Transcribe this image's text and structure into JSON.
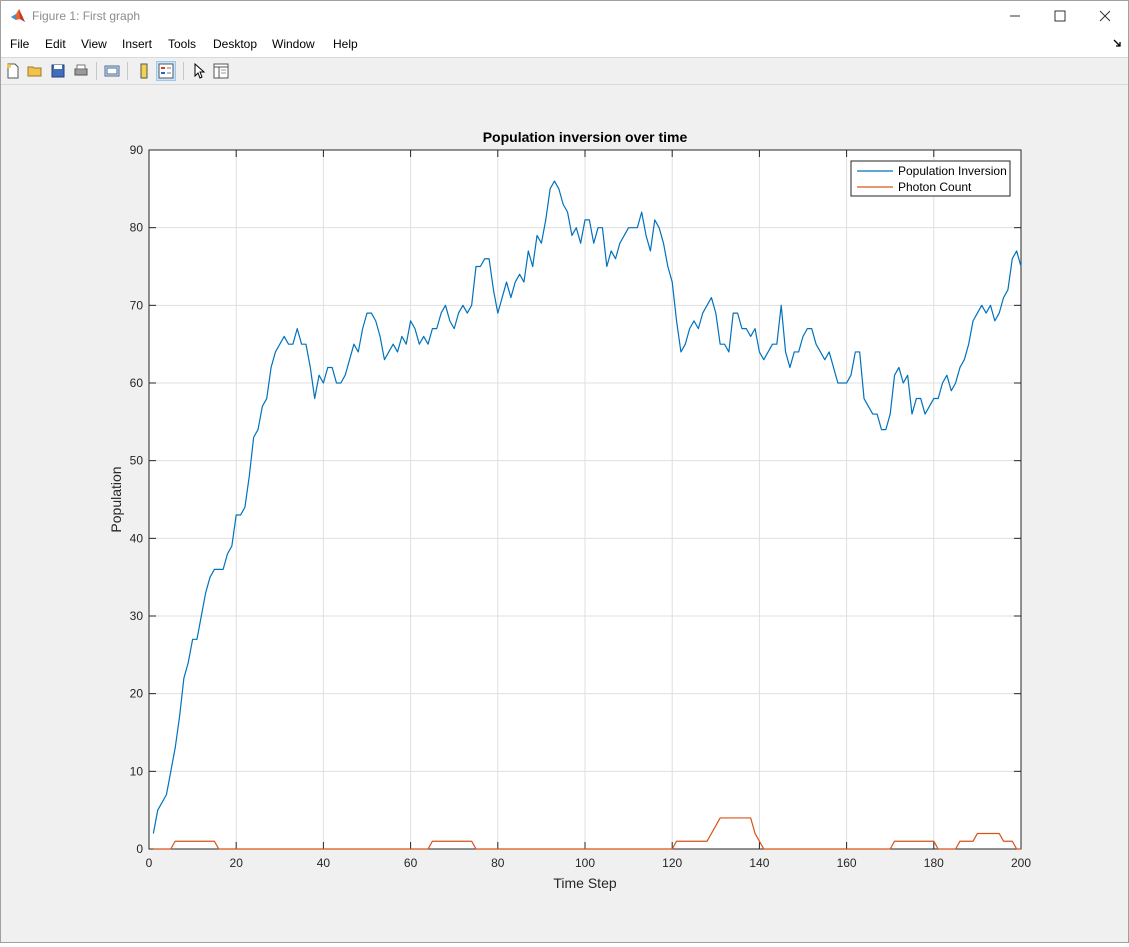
{
  "window": {
    "title": "Figure 1: First graph",
    "controls": {
      "minimize": "minimize-icon",
      "maximize": "maximize-icon",
      "close": "close-icon"
    }
  },
  "menu": {
    "items": [
      "File",
      "Edit",
      "View",
      "Insert",
      "Tools",
      "Desktop",
      "Window",
      "Help"
    ]
  },
  "toolbar": {
    "buttons": [
      "new-figure-icon",
      "open-file-icon",
      "save-icon",
      "print-icon",
      "export-icon",
      "colorbar-icon",
      "legend-icon",
      "pointer-icon",
      "property-inspector-icon"
    ]
  },
  "colors": {
    "series1": "#0072bd",
    "series2": "#d95319",
    "grid": "#dfdfdf",
    "axes": "#262626"
  },
  "chart_data": {
    "type": "line",
    "title": "Population inversion over time",
    "xlabel": "Time Step",
    "ylabel": "Population",
    "xlim": [
      0,
      200
    ],
    "ylim": [
      0,
      90
    ],
    "xticks": [
      0,
      20,
      40,
      60,
      80,
      100,
      120,
      140,
      160,
      180,
      200
    ],
    "yticks": [
      0,
      10,
      20,
      30,
      40,
      50,
      60,
      70,
      80,
      90
    ],
    "grid": true,
    "legend_position": "top-right",
    "series": [
      {
        "name": "Population Inversion",
        "x": [
          1,
          2,
          3,
          4,
          5,
          6,
          7,
          8,
          9,
          10,
          11,
          12,
          13,
          14,
          15,
          16,
          17,
          18,
          19,
          20,
          21,
          22,
          23,
          24,
          25,
          26,
          27,
          28,
          29,
          30,
          31,
          32,
          33,
          34,
          35,
          36,
          37,
          38,
          39,
          40,
          41,
          42,
          43,
          44,
          45,
          46,
          47,
          48,
          49,
          50,
          51,
          52,
          53,
          54,
          55,
          56,
          57,
          58,
          59,
          60,
          61,
          62,
          63,
          64,
          65,
          66,
          67,
          68,
          69,
          70,
          71,
          72,
          73,
          74,
          75,
          76,
          77,
          78,
          79,
          80,
          81,
          82,
          83,
          84,
          85,
          86,
          87,
          88,
          89,
          90,
          91,
          92,
          93,
          94,
          95,
          96,
          97,
          98,
          99,
          100,
          101,
          102,
          103,
          104,
          105,
          106,
          107,
          108,
          109,
          110,
          111,
          112,
          113,
          114,
          115,
          116,
          117,
          118,
          119,
          120,
          121,
          122,
          123,
          124,
          125,
          126,
          127,
          128,
          129,
          130,
          131,
          132,
          133,
          134,
          135,
          136,
          137,
          138,
          139,
          140,
          141,
          142,
          143,
          144,
          145,
          146,
          147,
          148,
          149,
          150,
          151,
          152,
          153,
          154,
          155,
          156,
          157,
          158,
          159,
          160,
          161,
          162,
          163,
          164,
          165,
          166,
          167,
          168,
          169,
          170,
          171,
          172,
          173,
          174,
          175,
          176,
          177,
          178,
          179,
          180,
          181,
          182,
          183,
          184,
          185,
          186,
          187,
          188,
          189,
          190,
          191,
          192,
          193,
          194,
          195,
          196,
          197,
          198,
          199,
          200
        ],
        "y": [
          2,
          5,
          6,
          7,
          10,
          13,
          17,
          22,
          24,
          27,
          27,
          30,
          33,
          35,
          36,
          36,
          36,
          38,
          39,
          43,
          43,
          44,
          48,
          53,
          54,
          57,
          58,
          62,
          64,
          65,
          66,
          65,
          65,
          67,
          65,
          65,
          62,
          58,
          61,
          60,
          62,
          62,
          60,
          60,
          61,
          63,
          65,
          64,
          67,
          69,
          69,
          68,
          66,
          63,
          64,
          65,
          64,
          66,
          65,
          68,
          67,
          65,
          66,
          65,
          67,
          67,
          69,
          70,
          68,
          67,
          69,
          70,
          69,
          70,
          75,
          75,
          76,
          76,
          72,
          69,
          71,
          73,
          71,
          73,
          74,
          73,
          77,
          75,
          79,
          78,
          81,
          85,
          86,
          85,
          83,
          82,
          79,
          80,
          78,
          81,
          81,
          78,
          80,
          80,
          75,
          77,
          76,
          78,
          79,
          80,
          80,
          80,
          82,
          79,
          77,
          81,
          80,
          78,
          75,
          73,
          68,
          64,
          65,
          67,
          68,
          67,
          69,
          70,
          71,
          69,
          65,
          65,
          64,
          69,
          69,
          67,
          67,
          66,
          67,
          64,
          63,
          64,
          65,
          65,
          70,
          64,
          62,
          64,
          64,
          66,
          67,
          67,
          65,
          64,
          63,
          64,
          62,
          60,
          60,
          60,
          61,
          64,
          64,
          58,
          57,
          56,
          56,
          54,
          54,
          56,
          61,
          62,
          60,
          61,
          56,
          58,
          58,
          56,
          57,
          58,
          58,
          60,
          61,
          59,
          60,
          62,
          63,
          65,
          68,
          69,
          70,
          69,
          70,
          68,
          69,
          71,
          72,
          76,
          77,
          75
        ]
      },
      {
        "name": "Photon Count",
        "x": [
          1,
          2,
          3,
          4,
          5,
          6,
          7,
          8,
          9,
          10,
          11,
          12,
          13,
          14,
          15,
          16,
          17,
          18,
          19,
          20,
          21,
          22,
          23,
          24,
          25,
          26,
          27,
          28,
          29,
          30,
          31,
          32,
          33,
          34,
          35,
          36,
          37,
          38,
          39,
          40,
          41,
          42,
          43,
          44,
          45,
          46,
          47,
          48,
          49,
          50,
          51,
          52,
          53,
          54,
          55,
          56,
          57,
          58,
          59,
          60,
          61,
          62,
          63,
          64,
          65,
          66,
          67,
          68,
          69,
          70,
          71,
          72,
          73,
          74,
          75,
          76,
          77,
          78,
          79,
          80,
          81,
          82,
          83,
          84,
          85,
          86,
          87,
          88,
          89,
          90,
          91,
          92,
          93,
          94,
          95,
          96,
          97,
          98,
          99,
          100,
          101,
          102,
          103,
          104,
          105,
          106,
          107,
          108,
          109,
          110,
          111,
          112,
          113,
          114,
          115,
          116,
          117,
          118,
          119,
          120,
          121,
          122,
          123,
          124,
          125,
          126,
          127,
          128,
          129,
          130,
          131,
          132,
          133,
          134,
          135,
          136,
          137,
          138,
          139,
          140,
          141,
          142,
          143,
          144,
          145,
          146,
          147,
          148,
          149,
          150,
          151,
          152,
          153,
          154,
          155,
          156,
          157,
          158,
          159,
          160,
          161,
          162,
          163,
          164,
          165,
          166,
          167,
          168,
          169,
          170,
          171,
          172,
          173,
          174,
          175,
          176,
          177,
          178,
          179,
          180,
          181,
          182,
          183,
          184,
          185,
          186,
          187,
          188,
          189,
          190,
          191,
          192,
          193,
          194,
          195,
          196,
          197,
          198,
          199,
          200
        ],
        "y": [
          0,
          0,
          0,
          0,
          0,
          1,
          1,
          1,
          1,
          1,
          1,
          1,
          1,
          1,
          1,
          0,
          0,
          0,
          0,
          0,
          0,
          0,
          0,
          0,
          0,
          0,
          0,
          0,
          0,
          0,
          0,
          0,
          0,
          0,
          0,
          0,
          0,
          0,
          0,
          0,
          0,
          0,
          0,
          0,
          0,
          0,
          0,
          0,
          0,
          0,
          0,
          0,
          0,
          0,
          0,
          0,
          0,
          0,
          0,
          0,
          0,
          0,
          0,
          0,
          1,
          1,
          1,
          1,
          1,
          1,
          1,
          1,
          1,
          1,
          0,
          0,
          0,
          0,
          0,
          0,
          0,
          0,
          0,
          0,
          0,
          0,
          0,
          0,
          0,
          0,
          0,
          0,
          0,
          0,
          0,
          0,
          0,
          0,
          0,
          0,
          0,
          0,
          0,
          0,
          0,
          0,
          0,
          0,
          0,
          0,
          0,
          0,
          0,
          0,
          0,
          0,
          0,
          0,
          0,
          0,
          1,
          1,
          1,
          1,
          1,
          1,
          1,
          1,
          2,
          3,
          4,
          4,
          4,
          4,
          4,
          4,
          4,
          4,
          2,
          1,
          0,
          0,
          0,
          0,
          0,
          0,
          0,
          0,
          0,
          0,
          0,
          0,
          0,
          0,
          0,
          0,
          0,
          0,
          0,
          0,
          0,
          0,
          0,
          0,
          0,
          0,
          0,
          0,
          0,
          0,
          1,
          1,
          1,
          1,
          1,
          1,
          1,
          1,
          1,
          1,
          0,
          0,
          0,
          0,
          0,
          1,
          1,
          1,
          1,
          2,
          2,
          2,
          2,
          2,
          2,
          1,
          1,
          1,
          0,
          0
        ]
      }
    ]
  }
}
